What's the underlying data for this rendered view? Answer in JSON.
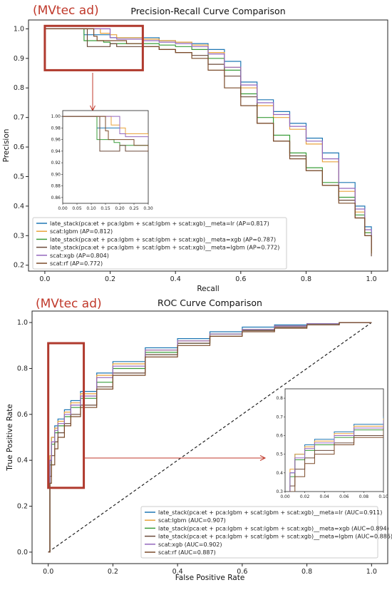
{
  "chart_data": [
    {
      "type": "line",
      "panel_tag": "(MVtec ad)",
      "title": "Precision-Recall Curve Comparison",
      "xlabel": "Recall",
      "ylabel": "Precision",
      "xlim": [
        -0.05,
        1.05
      ],
      "ylim": [
        0.18,
        1.03
      ],
      "xticks": [
        0.0,
        0.2,
        0.4,
        0.6,
        0.8,
        1.0
      ],
      "yticks": [
        0.2,
        0.3,
        0.4,
        0.5,
        0.6,
        0.7,
        0.8,
        0.9,
        1.0
      ],
      "grid": false,
      "legend_position": "lower-left",
      "zoom_box": {
        "x": [
          0.0,
          0.3
        ],
        "y": [
          0.86,
          1.01
        ]
      },
      "inset": {
        "xlim": [
          0.0,
          0.3
        ],
        "ylim": [
          0.85,
          1.01
        ],
        "xticks": [
          0.0,
          0.05,
          0.1,
          0.15,
          0.2,
          0.25,
          0.3
        ],
        "xtick_labels": [
          "0.00",
          "0.05",
          "0.10",
          "0.15",
          "0.20",
          "0.25",
          "0.30"
        ],
        "yticks": [
          0.86,
          0.88,
          0.9,
          0.92,
          0.94,
          0.96,
          0.98,
          1.0
        ],
        "ytick_labels": [
          "0.86",
          "0.88",
          "0.90",
          "0.92",
          "0.94",
          "0.96",
          "0.98",
          "1.00"
        ]
      },
      "series": [
        {
          "name": "late_stack(pca:et + pca:lgbm + scat:lgbm + scat:xgb)__meta=lr (AP=0.817)",
          "color": "#1f77b4",
          "x": [
            0.0,
            0.1,
            0.12,
            0.18,
            0.2,
            0.3,
            0.35,
            0.4,
            0.45,
            0.5,
            0.55,
            0.6,
            0.65,
            0.7,
            0.75,
            0.8,
            0.85,
            0.9,
            0.95,
            0.98,
            1.0
          ],
          "y": [
            1.0,
            1.0,
            0.98,
            0.98,
            0.97,
            0.97,
            0.96,
            0.955,
            0.95,
            0.93,
            0.89,
            0.82,
            0.76,
            0.72,
            0.68,
            0.63,
            0.58,
            0.48,
            0.4,
            0.33,
            0.25
          ]
        },
        {
          "name": "scat:lgbm (AP=0.812)",
          "color": "#e8a33d",
          "x": [
            0.0,
            0.15,
            0.17,
            0.2,
            0.22,
            0.3,
            0.35,
            0.4,
            0.45,
            0.5,
            0.55,
            0.6,
            0.65,
            0.7,
            0.75,
            0.8,
            0.85,
            0.9,
            0.95,
            0.98,
            1.0
          ],
          "y": [
            1.0,
            1.0,
            0.985,
            0.98,
            0.97,
            0.965,
            0.96,
            0.955,
            0.945,
            0.92,
            0.87,
            0.8,
            0.74,
            0.7,
            0.66,
            0.61,
            0.55,
            0.45,
            0.38,
            0.31,
            0.25
          ]
        },
        {
          "name": "late_stack(pca:et + pca:lgbm + scat:lgbm + scat:xgb)__meta=xgb (AP=0.787)",
          "color": "#3a9d3a",
          "x": [
            0.0,
            0.1,
            0.12,
            0.18,
            0.2,
            0.3,
            0.35,
            0.4,
            0.45,
            0.5,
            0.55,
            0.6,
            0.65,
            0.7,
            0.75,
            0.8,
            0.85,
            0.9,
            0.95,
            0.98,
            1.0
          ],
          "y": [
            1.0,
            1.0,
            0.96,
            0.955,
            0.95,
            0.95,
            0.945,
            0.94,
            0.93,
            0.9,
            0.86,
            0.78,
            0.7,
            0.64,
            0.58,
            0.53,
            0.48,
            0.43,
            0.37,
            0.31,
            0.24
          ]
        },
        {
          "name": "late_stack(pca:et + pca:lgbm + scat:lgbm + scat:xgb)__meta=lgbm (AP=0.772)",
          "color": "#6b4a3a",
          "x": [
            0.0,
            0.12,
            0.13,
            0.2,
            0.22,
            0.3,
            0.35,
            0.4,
            0.45,
            0.5,
            0.55,
            0.6,
            0.65,
            0.7,
            0.75,
            0.8,
            0.85,
            0.9,
            0.95,
            0.98,
            1.0
          ],
          "y": [
            1.0,
            1.0,
            0.94,
            0.95,
            0.94,
            0.94,
            0.93,
            0.92,
            0.91,
            0.88,
            0.84,
            0.77,
            0.68,
            0.62,
            0.57,
            0.52,
            0.47,
            0.42,
            0.36,
            0.3,
            0.23
          ]
        },
        {
          "name": "scat:xgb (AP=0.804)",
          "color": "#9467bd",
          "x": [
            0.0,
            0.2,
            0.22,
            0.3,
            0.35,
            0.4,
            0.45,
            0.5,
            0.55,
            0.6,
            0.65,
            0.7,
            0.75,
            0.8,
            0.85,
            0.9,
            0.95,
            0.98,
            1.0
          ],
          "y": [
            1.0,
            0.97,
            0.965,
            0.96,
            0.955,
            0.95,
            0.94,
            0.915,
            0.87,
            0.81,
            0.75,
            0.71,
            0.67,
            0.62,
            0.56,
            0.46,
            0.39,
            0.32,
            0.26
          ]
        },
        {
          "name": "scat:rf (AP=0.772)",
          "color": "#7b4b2a",
          "x": [
            0.0,
            0.15,
            0.16,
            0.25,
            0.3,
            0.35,
            0.4,
            0.45,
            0.5,
            0.55,
            0.6,
            0.65,
            0.7,
            0.75,
            0.8,
            0.85,
            0.9,
            0.95,
            0.98,
            1.0
          ],
          "y": [
            1.0,
            0.975,
            0.96,
            0.95,
            0.94,
            0.93,
            0.92,
            0.9,
            0.86,
            0.8,
            0.74,
            0.68,
            0.62,
            0.56,
            0.52,
            0.47,
            0.41,
            0.36,
            0.3,
            0.24
          ]
        }
      ]
    },
    {
      "type": "line",
      "panel_tag": "(MVtec ad)",
      "title": "ROC Curve Comparison",
      "xlabel": "False Positive Rate",
      "ylabel": "True Positive Rate",
      "xlim": [
        -0.05,
        1.05
      ],
      "ylim": [
        -0.05,
        1.05
      ],
      "xticks": [
        0.0,
        0.2,
        0.4,
        0.6,
        0.8,
        1.0
      ],
      "yticks": [
        0.0,
        0.2,
        0.4,
        0.6,
        0.8,
        1.0
      ],
      "grid": false,
      "legend_position": "lower-right",
      "diagonal": true,
      "zoom_box": {
        "x": [
          0.0,
          0.11
        ],
        "y": [
          0.28,
          0.91
        ]
      },
      "inset": {
        "xlim": [
          0.0,
          0.1
        ],
        "ylim": [
          0.3,
          0.85
        ],
        "xticks": [
          0.0,
          0.02,
          0.04,
          0.06,
          0.08,
          0.1
        ],
        "xtick_labels": [
          "0.00",
          "0.02",
          "0.04",
          "0.06",
          "0.08",
          "0.10"
        ],
        "yticks": [
          0.3,
          0.4,
          0.5,
          0.6,
          0.7,
          0.8
        ],
        "ytick_labels": [
          "0.3",
          "0.4",
          "0.5",
          "0.6",
          "0.7",
          "0.8"
        ]
      },
      "series": [
        {
          "name": "late_stack(pca:et + pca:lgbm + scat:lgbm + scat:xgb)__meta=lr (AUC=0.911)",
          "color": "#1f77b4",
          "x": [
            0.0,
            0.005,
            0.01,
            0.02,
            0.03,
            0.05,
            0.07,
            0.1,
            0.15,
            0.2,
            0.3,
            0.4,
            0.5,
            0.6,
            0.7,
            0.8,
            0.9,
            1.0
          ],
          "y": [
            0.0,
            0.4,
            0.5,
            0.55,
            0.58,
            0.62,
            0.66,
            0.7,
            0.78,
            0.83,
            0.89,
            0.93,
            0.96,
            0.98,
            0.99,
            0.995,
            1.0,
            1.0
          ]
        },
        {
          "name": "scat:lgbm (AUC=0.907)",
          "color": "#e8a33d",
          "x": [
            0.0,
            0.005,
            0.01,
            0.02,
            0.03,
            0.05,
            0.07,
            0.1,
            0.15,
            0.2,
            0.3,
            0.4,
            0.5,
            0.6,
            0.7,
            0.8,
            0.9,
            1.0
          ],
          "y": [
            0.0,
            0.42,
            0.5,
            0.54,
            0.57,
            0.61,
            0.65,
            0.69,
            0.77,
            0.82,
            0.88,
            0.92,
            0.95,
            0.97,
            0.985,
            0.995,
            1.0,
            1.0
          ]
        },
        {
          "name": "late_stack(pca:et + pca:lgbm + scat:lgbm + scat:xgb)__meta=xgb (AUC=0.894)",
          "color": "#3a9d3a",
          "x": [
            0.0,
            0.005,
            0.01,
            0.02,
            0.03,
            0.05,
            0.07,
            0.1,
            0.15,
            0.2,
            0.3,
            0.4,
            0.5,
            0.6,
            0.7,
            0.8,
            0.9,
            1.0
          ],
          "y": [
            0.0,
            0.38,
            0.47,
            0.52,
            0.55,
            0.59,
            0.63,
            0.67,
            0.74,
            0.8,
            0.87,
            0.91,
            0.95,
            0.97,
            0.985,
            0.995,
            1.0,
            1.0
          ]
        },
        {
          "name": "late_stack(pca:et + pca:lgbm + scat:lgbm + scat:xgb)__meta=lgbm (AUC=0.886)",
          "color": "#6b4a3a",
          "x": [
            0.0,
            0.005,
            0.01,
            0.02,
            0.03,
            0.05,
            0.07,
            0.1,
            0.15,
            0.2,
            0.3,
            0.4,
            0.5,
            0.6,
            0.7,
            0.8,
            0.9,
            1.0
          ],
          "y": [
            0.0,
            0.33,
            0.42,
            0.48,
            0.52,
            0.56,
            0.6,
            0.64,
            0.72,
            0.78,
            0.86,
            0.91,
            0.94,
            0.965,
            0.98,
            0.99,
            1.0,
            1.0
          ]
        },
        {
          "name": "scat:xgb (AUC=0.902)",
          "color": "#9467bd",
          "x": [
            0.0,
            0.005,
            0.01,
            0.02,
            0.03,
            0.05,
            0.07,
            0.1,
            0.15,
            0.2,
            0.3,
            0.4,
            0.5,
            0.6,
            0.7,
            0.8,
            0.9,
            1.0
          ],
          "y": [
            0.0,
            0.4,
            0.48,
            0.53,
            0.56,
            0.6,
            0.64,
            0.68,
            0.76,
            0.81,
            0.88,
            0.92,
            0.95,
            0.97,
            0.985,
            0.995,
            1.0,
            1.0
          ]
        },
        {
          "name": "scat:rf (AUC=0.887)",
          "color": "#7b4b2a",
          "x": [
            0.0,
            0.005,
            0.01,
            0.02,
            0.03,
            0.05,
            0.07,
            0.1,
            0.15,
            0.2,
            0.3,
            0.4,
            0.5,
            0.6,
            0.7,
            0.8,
            0.9,
            1.0
          ],
          "y": [
            0.0,
            0.3,
            0.38,
            0.45,
            0.5,
            0.55,
            0.59,
            0.63,
            0.71,
            0.77,
            0.85,
            0.9,
            0.94,
            0.96,
            0.975,
            0.99,
            1.0,
            1.0
          ]
        }
      ]
    }
  ]
}
